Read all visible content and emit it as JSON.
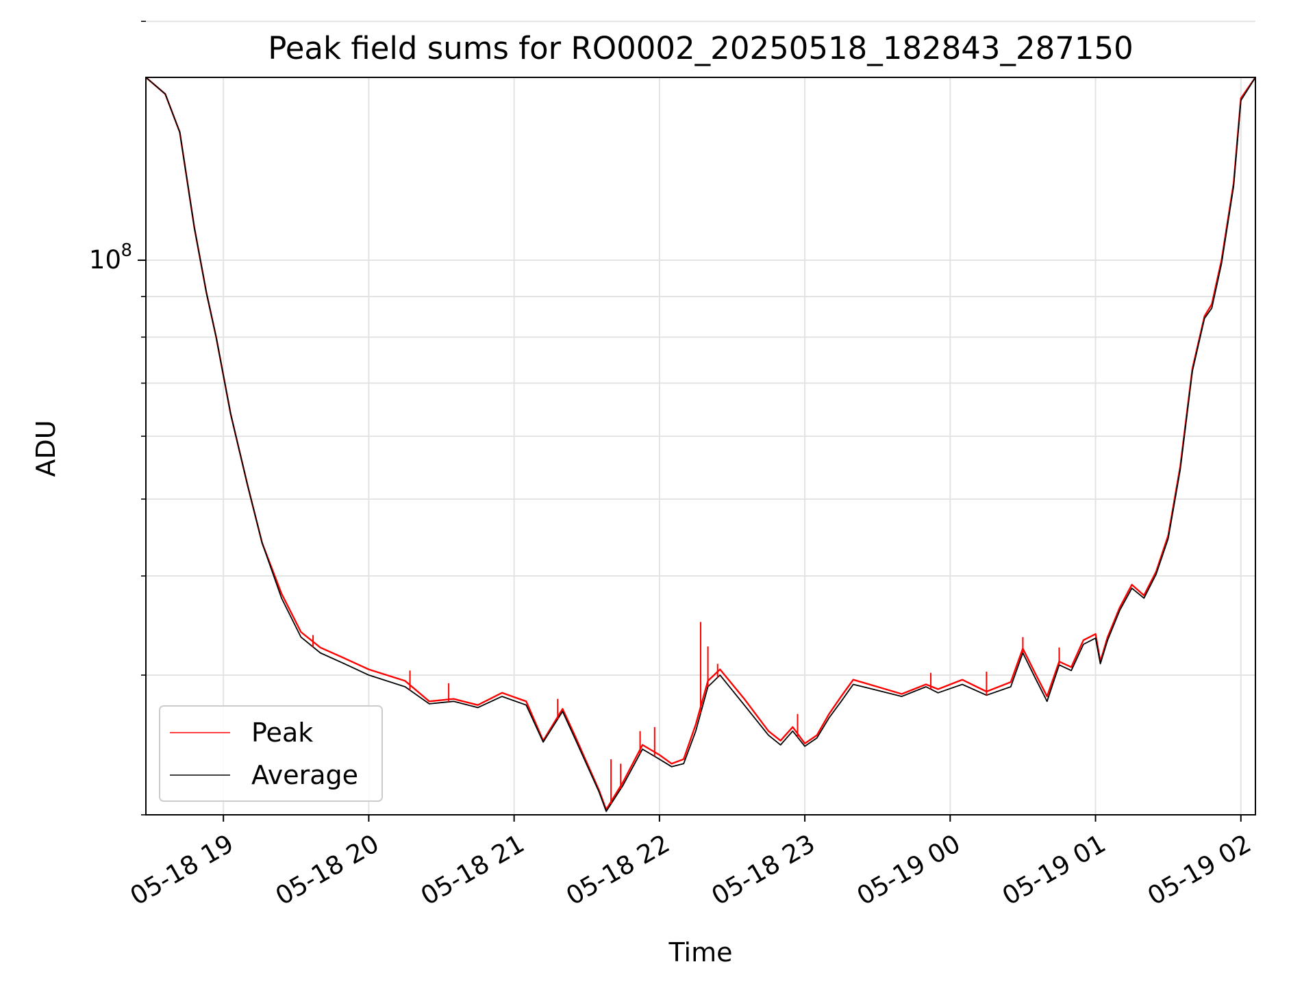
{
  "chart_data": {
    "type": "line",
    "title": "Peak field sums for RO0002_20250518_182843_287150",
    "xlabel": "Time",
    "ylabel": "ADU",
    "x_axis": {
      "kind": "time",
      "range": [
        "2025-05-18 18:28",
        "2025-05-19 02:06"
      ],
      "ticks": [
        {
          "value": "2025-05-18 19:00",
          "label": "05-18 19"
        },
        {
          "value": "2025-05-18 20:00",
          "label": "05-18 20"
        },
        {
          "value": "2025-05-18 21:00",
          "label": "05-18 21"
        },
        {
          "value": "2025-05-18 22:00",
          "label": "05-18 22"
        },
        {
          "value": "2025-05-18 23:00",
          "label": "05-18 23"
        },
        {
          "value": "2025-05-19 00:00",
          "label": "05-19 00"
        },
        {
          "value": "2025-05-19 01:00",
          "label": "05-19 01"
        },
        {
          "value": "2025-05-19 02:00",
          "label": "05-19 02"
        }
      ]
    },
    "y_axis": {
      "scale": "log",
      "range": [
        20000000,
        170000000
      ],
      "major_ticks": [
        {
          "value": 100000000,
          "label_base": "10",
          "label_exp": "8"
        }
      ],
      "minor_ticks": [
        20000000,
        30000000,
        40000000,
        50000000,
        60000000,
        70000000,
        80000000,
        90000000,
        200000000
      ]
    },
    "grid": true,
    "legend": {
      "position": "lower-left",
      "entries": [
        "Peak",
        "Average"
      ]
    },
    "series": [
      {
        "name": "Peak",
        "color": "#ff0000",
        "x": [
          "2025-05-18 18:28",
          "2025-05-18 18:36",
          "2025-05-18 18:42",
          "2025-05-18 18:48",
          "2025-05-18 18:53",
          "2025-05-18 18:57",
          "2025-05-18 19:03",
          "2025-05-18 19:10",
          "2025-05-18 19:16",
          "2025-05-18 19:24",
          "2025-05-18 19:32",
          "2025-05-18 19:40",
          "2025-05-18 19:50",
          "2025-05-18 20:00",
          "2025-05-18 20:15",
          "2025-05-18 20:25",
          "2025-05-18 20:35",
          "2025-05-18 20:45",
          "2025-05-18 20:55",
          "2025-05-18 21:05",
          "2025-05-18 21:12",
          "2025-05-18 21:20",
          "2025-05-18 21:25",
          "2025-05-18 21:35",
          "2025-05-18 21:38",
          "2025-05-18 21:45",
          "2025-05-18 21:53",
          "2025-05-18 22:00",
          "2025-05-18 22:05",
          "2025-05-18 22:10",
          "2025-05-18 22:15",
          "2025-05-18 22:20",
          "2025-05-18 22:25",
          "2025-05-18 22:35",
          "2025-05-18 22:45",
          "2025-05-18 22:50",
          "2025-05-18 22:55",
          "2025-05-18 23:00",
          "2025-05-18 23:05",
          "2025-05-18 23:10",
          "2025-05-18 23:15",
          "2025-05-18 23:20",
          "2025-05-18 23:30",
          "2025-05-18 23:40",
          "2025-05-18 23:50",
          "2025-05-18 23:55",
          "2025-05-19 00:05",
          "2025-05-19 00:15",
          "2025-05-19 00:25",
          "2025-05-19 00:30",
          "2025-05-19 00:35",
          "2025-05-19 00:40",
          "2025-05-19 00:45",
          "2025-05-19 00:50",
          "2025-05-19 00:55",
          "2025-05-19 01:00",
          "2025-05-19 01:02",
          "2025-05-19 01:05",
          "2025-05-19 01:10",
          "2025-05-19 01:15",
          "2025-05-19 01:20",
          "2025-05-19 01:25",
          "2025-05-19 01:30",
          "2025-05-19 01:35",
          "2025-05-19 01:40",
          "2025-05-19 01:45",
          "2025-05-19 01:48",
          "2025-05-19 01:52",
          "2025-05-19 01:57",
          "2025-05-19 02:00",
          "2025-05-19 02:06"
        ],
        "y": [
          170000000,
          162000000,
          145000000,
          110000000,
          91000000,
          80000000,
          64000000,
          52000000,
          44000000,
          38000000,
          34000000,
          32500000,
          31500000,
          30500000,
          29500000,
          27800000,
          28000000,
          27500000,
          28500000,
          27800000,
          24800000,
          27200000,
          25200000,
          21500000,
          20300000,
          22000000,
          24500000,
          23800000,
          23200000,
          23500000,
          26000000,
          29500000,
          30500000,
          28000000,
          25500000,
          24800000,
          25800000,
          24600000,
          25200000,
          26800000,
          28200000,
          29600000,
          29000000,
          28400000,
          29200000,
          28800000,
          29600000,
          28600000,
          29400000,
          32400000,
          30200000,
          28200000,
          31200000,
          30700000,
          33200000,
          33800000,
          31200000,
          33500000,
          36500000,
          39000000,
          37800000,
          40500000,
          45000000,
          55000000,
          73000000,
          85000000,
          88000000,
          100000000,
          125000000,
          160000000,
          170000000
        ]
      },
      {
        "name": "Average",
        "color": "#000000",
        "x": [
          "2025-05-18 18:28",
          "2025-05-18 18:36",
          "2025-05-18 18:42",
          "2025-05-18 18:48",
          "2025-05-18 18:53",
          "2025-05-18 18:57",
          "2025-05-18 19:03",
          "2025-05-18 19:10",
          "2025-05-18 19:16",
          "2025-05-18 19:24",
          "2025-05-18 19:32",
          "2025-05-18 19:40",
          "2025-05-18 19:50",
          "2025-05-18 20:00",
          "2025-05-18 20:15",
          "2025-05-18 20:25",
          "2025-05-18 20:35",
          "2025-05-18 20:45",
          "2025-05-18 20:55",
          "2025-05-18 21:05",
          "2025-05-18 21:12",
          "2025-05-18 21:20",
          "2025-05-18 21:25",
          "2025-05-18 21:35",
          "2025-05-18 21:38",
          "2025-05-18 21:45",
          "2025-05-18 21:53",
          "2025-05-18 22:00",
          "2025-05-18 22:05",
          "2025-05-18 22:10",
          "2025-05-18 22:15",
          "2025-05-18 22:20",
          "2025-05-18 22:25",
          "2025-05-18 22:35",
          "2025-05-18 22:45",
          "2025-05-18 22:50",
          "2025-05-18 22:55",
          "2025-05-18 23:00",
          "2025-05-18 23:05",
          "2025-05-18 23:10",
          "2025-05-18 23:15",
          "2025-05-18 23:20",
          "2025-05-18 23:30",
          "2025-05-18 23:40",
          "2025-05-18 23:50",
          "2025-05-18 23:55",
          "2025-05-19 00:05",
          "2025-05-19 00:15",
          "2025-05-19 00:25",
          "2025-05-19 00:30",
          "2025-05-19 00:35",
          "2025-05-19 00:40",
          "2025-05-19 00:45",
          "2025-05-19 00:50",
          "2025-05-19 00:55",
          "2025-05-19 01:00",
          "2025-05-19 01:02",
          "2025-05-19 01:05",
          "2025-05-19 01:10",
          "2025-05-19 01:15",
          "2025-05-19 01:20",
          "2025-05-19 01:25",
          "2025-05-19 01:30",
          "2025-05-19 01:35",
          "2025-05-19 01:40",
          "2025-05-19 01:45",
          "2025-05-19 01:48",
          "2025-05-19 01:52",
          "2025-05-19 01:57",
          "2025-05-19 02:00",
          "2025-05-19 02:06"
        ],
        "y": [
          170000000,
          162000000,
          145000000,
          110000000,
          91000000,
          80000000,
          64000000,
          52000000,
          44000000,
          37500000,
          33500000,
          32000000,
          31000000,
          30000000,
          29000000,
          27600000,
          27800000,
          27300000,
          28200000,
          27500000,
          24700000,
          27000000,
          25000000,
          21400000,
          20200000,
          21800000,
          24200000,
          23500000,
          23000000,
          23200000,
          25500000,
          29000000,
          30000000,
          27500000,
          25200000,
          24500000,
          25500000,
          24400000,
          25000000,
          26500000,
          27800000,
          29200000,
          28700000,
          28200000,
          29000000,
          28500000,
          29200000,
          28300000,
          29000000,
          32000000,
          29800000,
          27800000,
          30900000,
          30400000,
          32800000,
          33400000,
          31000000,
          33200000,
          36200000,
          38600000,
          37500000,
          40200000,
          44600000,
          54500000,
          72500000,
          84500000,
          87000000,
          99000000,
          124000000,
          159000000,
          170000000
        ]
      }
    ],
    "peak_spikes": [
      {
        "x": "2025-05-18 22:17",
        "y": 35000000
      },
      {
        "x": "2025-05-18 22:20",
        "y": 32600000
      },
      {
        "x": "2025-05-18 22:24",
        "y": 31000000
      },
      {
        "x": "2025-05-18 21:58",
        "y": 25800000
      },
      {
        "x": "2025-05-18 21:52",
        "y": 25500000
      },
      {
        "x": "2025-05-18 21:40",
        "y": 23500000
      },
      {
        "x": "2025-05-18 21:44",
        "y": 23200000
      },
      {
        "x": "2025-05-18 21:18",
        "y": 28000000
      },
      {
        "x": "2025-05-18 20:33",
        "y": 29300000
      },
      {
        "x": "2025-05-18 20:17",
        "y": 30400000
      },
      {
        "x": "2025-05-18 19:37",
        "y": 33700000
      },
      {
        "x": "2025-05-19 00:30",
        "y": 33500000
      },
      {
        "x": "2025-05-19 00:45",
        "y": 32500000
      },
      {
        "x": "2025-05-18 23:52",
        "y": 30200000
      },
      {
        "x": "2025-05-19 00:15",
        "y": 30300000
      },
      {
        "x": "2025-05-18 22:57",
        "y": 26800000
      }
    ]
  }
}
